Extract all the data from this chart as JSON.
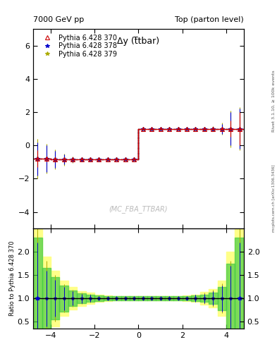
{
  "title_left": "7000 GeV pp",
  "title_right": "Top (parton level)",
  "plot_title": "Δy (t̅tbar)",
  "watermark": "(MC_FBA_TTBAR)",
  "right_label": "Rivet 3.1.10, ≥ 100k events",
  "arxiv_label": "mcplots.cern.ch [arXiv:1306.3436]",
  "ylabel_ratio": "Ratio to Pythia 6.428 370",
  "xlim": [
    -4.8,
    4.8
  ],
  "ylim_main": [
    -5.0,
    7.0
  ],
  "ylim_ratio": [
    0.35,
    2.5
  ],
  "yticks_main": [
    -4,
    -2,
    0,
    2,
    4,
    6
  ],
  "yticks_ratio": [
    0.5,
    1.0,
    1.5,
    2.0
  ],
  "xticks": [
    -4,
    -2,
    0,
    2,
    4
  ],
  "series": [
    {
      "label": "Pythia 6.428 370",
      "color": "#cc0000",
      "linestyle": "-",
      "marker": "^",
      "markersize": 4,
      "linewidth": 1.0
    },
    {
      "label": "Pythia 6.428 378",
      "color": "#0000cc",
      "linestyle": "--",
      "marker": "*",
      "markersize": 5,
      "linewidth": 1.0
    },
    {
      "label": "Pythia 6.428 379",
      "color": "#aaaa00",
      "linestyle": "--",
      "marker": "*",
      "markersize": 5,
      "linewidth": 1.0
    }
  ],
  "bin_edges": [
    -4.8,
    -4.4,
    -4.0,
    -3.6,
    -3.2,
    -2.8,
    -2.4,
    -2.0,
    -1.6,
    -1.2,
    -0.8,
    -0.4,
    0.0,
    0.4,
    0.8,
    1.2,
    1.6,
    2.0,
    2.4,
    2.8,
    3.2,
    3.6,
    4.0,
    4.4,
    4.8
  ],
  "values_370": [
    -0.8,
    -0.8,
    -0.85,
    -0.85,
    -0.85,
    -0.85,
    -0.85,
    -0.85,
    -0.85,
    -0.85,
    -0.85,
    -0.85,
    1.0,
    1.0,
    1.0,
    1.0,
    1.0,
    1.0,
    1.0,
    1.0,
    1.0,
    1.0,
    1.0,
    1.0
  ],
  "errors_370": [
    0.5,
    0.15,
    0.12,
    0.08,
    0.06,
    0.05,
    0.04,
    0.04,
    0.04,
    0.04,
    0.04,
    0.04,
    0.04,
    0.04,
    0.04,
    0.04,
    0.04,
    0.04,
    0.04,
    0.04,
    0.04,
    0.12,
    0.5,
    1.0
  ],
  "values_378": [
    -0.8,
    -0.8,
    -0.85,
    -0.85,
    -0.85,
    -0.85,
    -0.85,
    -0.85,
    -0.85,
    -0.85,
    -0.85,
    -0.85,
    1.0,
    1.0,
    1.0,
    1.0,
    1.0,
    1.0,
    1.0,
    1.0,
    1.0,
    1.0,
    1.0,
    1.0
  ],
  "errors_378": [
    1.0,
    0.8,
    0.5,
    0.3,
    0.15,
    0.1,
    0.08,
    0.06,
    0.05,
    0.05,
    0.05,
    0.05,
    0.05,
    0.05,
    0.05,
    0.05,
    0.05,
    0.05,
    0.05,
    0.08,
    0.12,
    0.3,
    1.0,
    1.2
  ],
  "values_379": [
    -0.8,
    -0.8,
    -0.85,
    -0.85,
    -0.85,
    -0.85,
    -0.85,
    -0.85,
    -0.85,
    -0.85,
    -0.85,
    -0.85,
    1.0,
    1.0,
    1.0,
    1.0,
    1.0,
    1.0,
    1.0,
    1.0,
    1.0,
    1.0,
    1.0,
    1.0
  ],
  "errors_379": [
    1.2,
    0.9,
    0.6,
    0.35,
    0.18,
    0.12,
    0.09,
    0.07,
    0.06,
    0.05,
    0.05,
    0.05,
    0.05,
    0.05,
    0.05,
    0.05,
    0.05,
    0.05,
    0.05,
    0.09,
    0.15,
    0.35,
    1.1,
    1.3
  ],
  "ratio_378_err": [
    1.2,
    0.6,
    0.4,
    0.25,
    0.15,
    0.1,
    0.07,
    0.05,
    0.04,
    0.04,
    0.04,
    0.04,
    0.04,
    0.04,
    0.04,
    0.04,
    0.04,
    0.05,
    0.07,
    0.1,
    0.15,
    0.28,
    0.7,
    1.2
  ],
  "ratio_379_err": [
    1.5,
    0.8,
    0.5,
    0.3,
    0.18,
    0.12,
    0.09,
    0.06,
    0.05,
    0.04,
    0.04,
    0.04,
    0.04,
    0.04,
    0.04,
    0.04,
    0.04,
    0.05,
    0.08,
    0.12,
    0.18,
    0.32,
    0.8,
    1.5
  ],
  "green_band_half": [
    1.3,
    0.65,
    0.45,
    0.28,
    0.17,
    0.11,
    0.08,
    0.055,
    0.045,
    0.04,
    0.04,
    0.04,
    0.04,
    0.04,
    0.04,
    0.04,
    0.04,
    0.045,
    0.055,
    0.08,
    0.12,
    0.25,
    0.75,
    1.3
  ],
  "yellow_band_half": [
    1.6,
    0.9,
    0.6,
    0.38,
    0.24,
    0.16,
    0.12,
    0.08,
    0.06,
    0.05,
    0.05,
    0.05,
    0.05,
    0.05,
    0.05,
    0.05,
    0.05,
    0.06,
    0.08,
    0.14,
    0.2,
    0.38,
    1.0,
    1.6
  ],
  "bg_color": "#ffffff"
}
